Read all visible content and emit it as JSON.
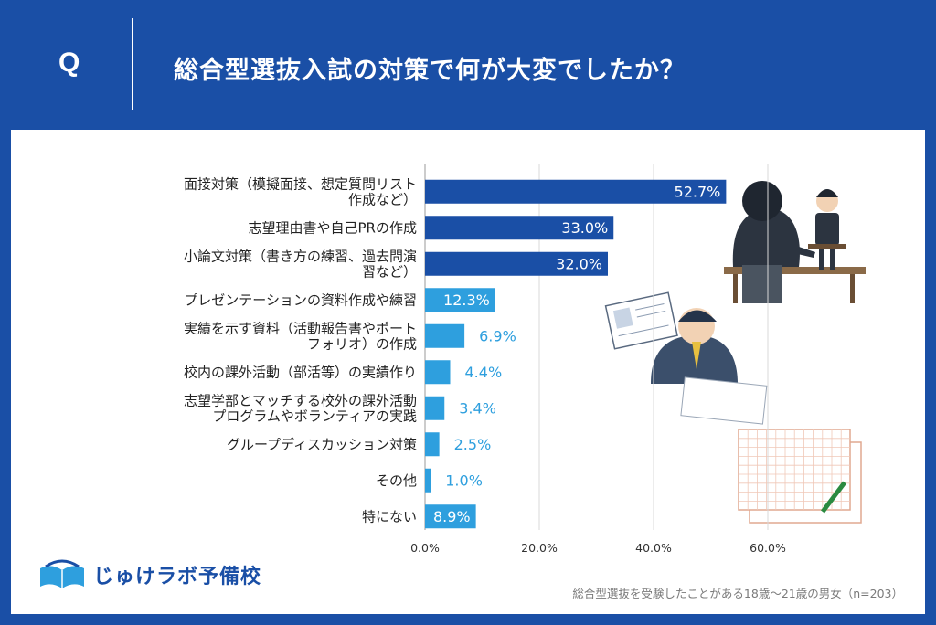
{
  "header": {
    "q_label": "Q",
    "title": "総合型選抜入試の対策で何が大変でしたか？"
  },
  "chart_data": {
    "type": "bar",
    "orientation": "horizontal",
    "categories": [
      [
        "面接対策（模擬面接、想定質問リスト",
        "作成など）"
      ],
      [
        "志望理由書や自己PRの作成"
      ],
      [
        "小論文対策（書き方の練習、過去問演",
        "習など）"
      ],
      [
        "プレゼンテーションの資料作成や練習"
      ],
      [
        "実績を示す資料（活動報告書やポート",
        "フォリオ）の作成"
      ],
      [
        "校内の課外活動（部活等）の実績作り"
      ],
      [
        "志望学部とマッチする校外の課外活動",
        "プログラムやボランティアの実践"
      ],
      [
        "グループディスカッション対策"
      ],
      [
        "その他"
      ],
      [
        "特にない"
      ]
    ],
    "values": [
      52.7,
      33.0,
      32.0,
      12.3,
      6.9,
      4.4,
      3.4,
      2.5,
      1.0,
      8.9
    ],
    "data_labels": [
      "52.7%",
      "33.0%",
      "32.0%",
      "12.3%",
      "6.9%",
      "4.4%",
      "3.4%",
      "2.5%",
      "1.0%",
      "8.9%"
    ],
    "bar_colors": [
      "#1a4fa6",
      "#1a4fa6",
      "#1a4fa6",
      "#2e9fde",
      "#2e9fde",
      "#2e9fde",
      "#2e9fde",
      "#2e9fde",
      "#2e9fde",
      "#2e9fde"
    ],
    "xlim": [
      0,
      60
    ],
    "xticks": [
      0,
      20,
      40,
      60
    ],
    "xtick_labels": [
      "0.0%",
      "20.0%",
      "40.0%",
      "60.0%"
    ],
    "grid": true
  },
  "footnote": "総合型選抜を受験したことがある18歳～21歳の男女（n=203）",
  "logo": {
    "text": "じゅけラボ予備校"
  },
  "colors": {
    "primary": "#1a4fa6",
    "secondary": "#2e9fde"
  }
}
